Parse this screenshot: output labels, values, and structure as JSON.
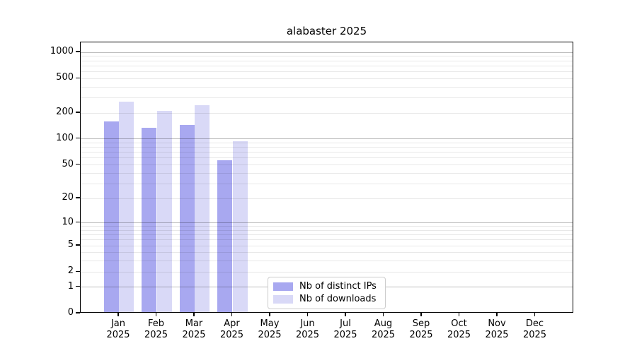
{
  "chart_data": {
    "type": "bar",
    "title": "alabaster 2025",
    "year_label": "2025",
    "months": [
      "Jan",
      "Feb",
      "Mar",
      "Apr",
      "May",
      "Jun",
      "Jul",
      "Aug",
      "Sep",
      "Oct",
      "Nov",
      "Dec"
    ],
    "categories": [
      "Jan 2025",
      "Feb 2025",
      "Mar 2025",
      "Apr 2025",
      "May 2025",
      "Jun 2025",
      "Jul 2025",
      "Aug 2025",
      "Sep 2025",
      "Oct 2025",
      "Nov 2025",
      "Dec 2025"
    ],
    "series": [
      {
        "name": "Nb of distinct IPs",
        "color": "#a8a8f0",
        "values": [
          153,
          129,
          141,
          54,
          0,
          0,
          0,
          0,
          0,
          0,
          0,
          0
        ]
      },
      {
        "name": "Nb of downloads",
        "color": "#d9d9f7",
        "values": [
          260,
          204,
          235,
          91,
          0,
          0,
          0,
          0,
          0,
          0,
          0,
          0
        ]
      }
    ],
    "yscale": "log1p",
    "ylabel": "",
    "xlabel": "",
    "ylim": [
      0,
      1300
    ],
    "y_ticks": [
      0,
      1,
      2,
      5,
      10,
      20,
      50,
      100,
      200,
      500,
      1000
    ],
    "y_major_gridlines": [
      1,
      10,
      100,
      1000
    ],
    "y_minor_gridlines": [
      2,
      3,
      4,
      5,
      6,
      7,
      8,
      9,
      20,
      30,
      40,
      50,
      60,
      70,
      80,
      90,
      200,
      300,
      400,
      500,
      600,
      700,
      800,
      900
    ],
    "grid": true,
    "legend_position": "lower center"
  },
  "colors": {
    "bar_distinct_ips": "#a8a8f0",
    "bar_downloads": "#d9d9f7",
    "major_gridline": "#bdbdbd",
    "minor_gridline": "#e8e8e8",
    "axis": "#000000",
    "legend_border": "#cccccc"
  }
}
